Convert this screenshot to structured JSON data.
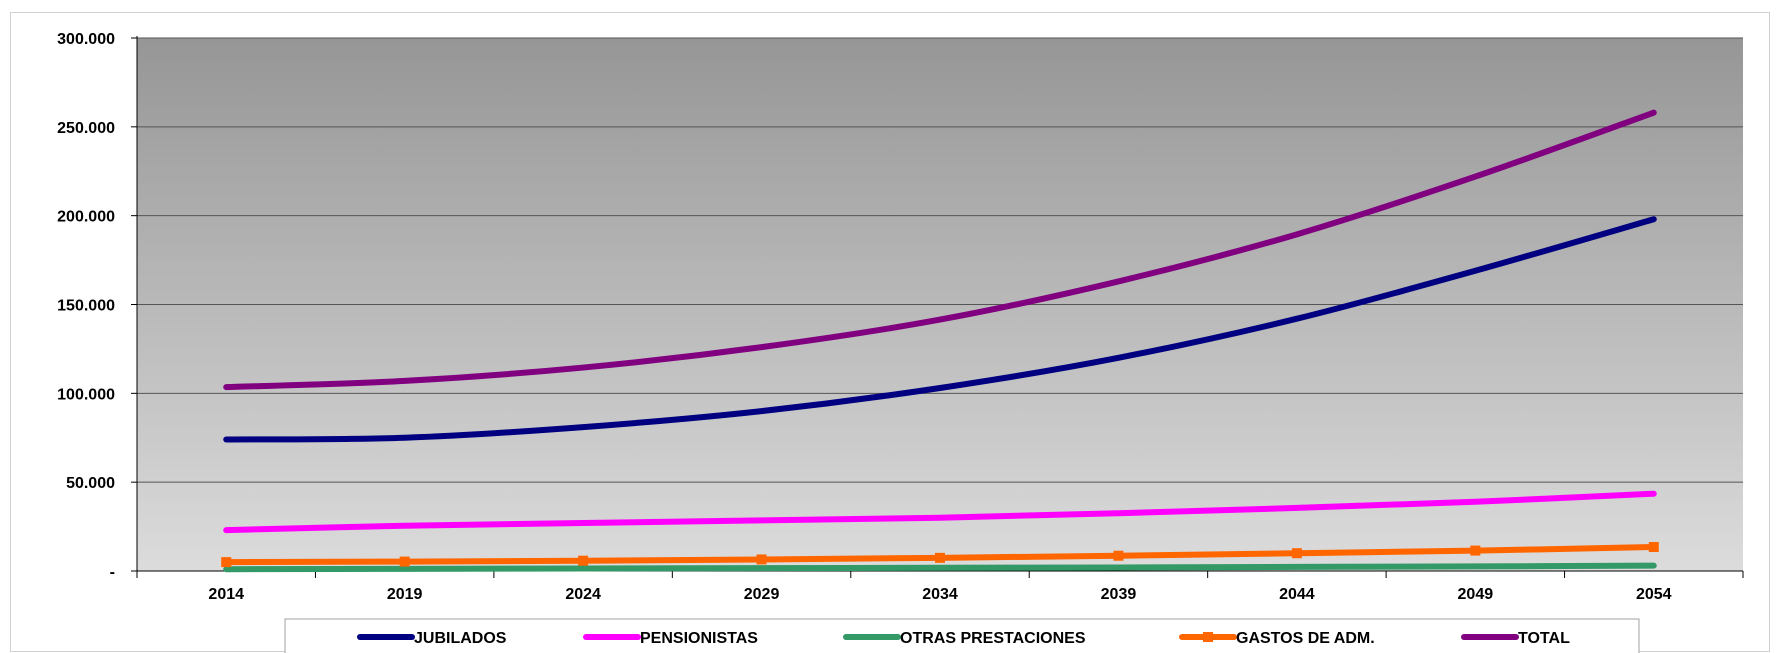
{
  "chart_data": {
    "type": "line",
    "title": "",
    "xlabel": "",
    "ylabel": "",
    "categories": [
      "2014",
      "2019",
      "2024",
      "2029",
      "2034",
      "2039",
      "2044",
      "2049",
      "2054"
    ],
    "y_ticks": [
      "-",
      "50.000",
      "100.000",
      "150.000",
      "200.000",
      "250.000",
      "300.000"
    ],
    "ylim": [
      0,
      300000
    ],
    "grid": true,
    "legend_position": "bottom",
    "series": [
      {
        "name": "JUBILADOS",
        "color": "#000080",
        "marker": "none",
        "values": [
          74000,
          75000,
          81000,
          90000,
          103000,
          120000,
          142000,
          169000,
          198000
        ]
      },
      {
        "name": "PENSIONISTAS",
        "color": "#ff00ff",
        "marker": "none",
        "values": [
          23000,
          25500,
          27000,
          28500,
          30000,
          32500,
          35500,
          39000,
          43500
        ]
      },
      {
        "name": "OTRAS PRESTACIONES",
        "color": "#339966",
        "marker": "none",
        "values": [
          1000,
          1200,
          1400,
          1600,
          1800,
          2000,
          2300,
          2600,
          3000
        ]
      },
      {
        "name": "GASTOS DE ADM.",
        "color": "#ff6600",
        "marker": "square",
        "values": [
          5000,
          5300,
          5800,
          6500,
          7400,
          8600,
          10000,
          11500,
          13500
        ]
      },
      {
        "name": "TOTAL",
        "color": "#800080",
        "marker": "none",
        "values": [
          103500,
          107000,
          114500,
          126000,
          141500,
          163000,
          189500,
          222000,
          258000
        ]
      }
    ]
  }
}
